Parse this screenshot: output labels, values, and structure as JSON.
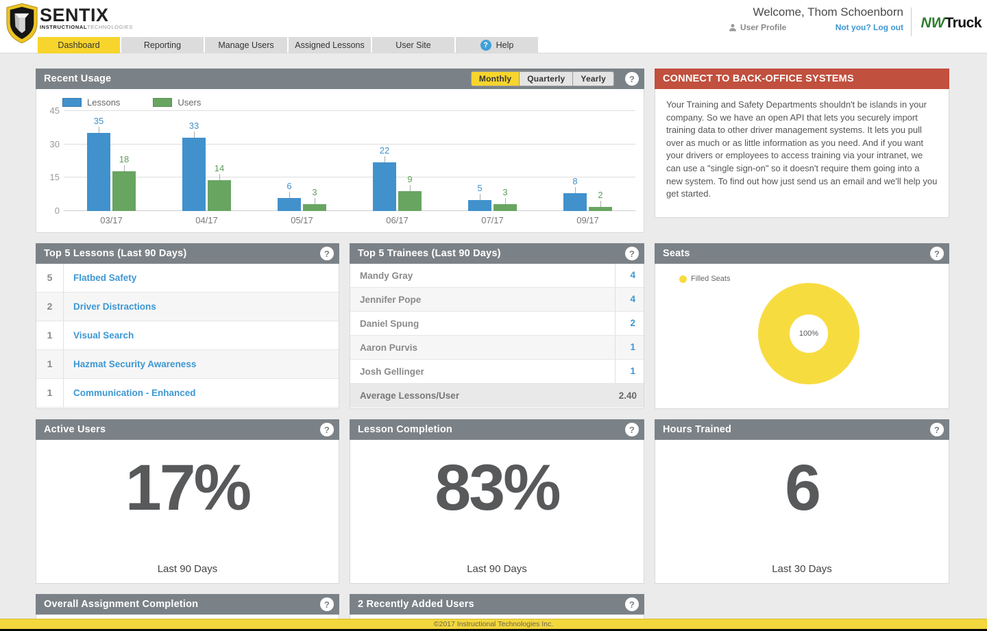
{
  "header": {
    "brand": {
      "name": "SENTIX",
      "sub1": "INSTRUCTIONAL",
      "sub2": "TECHNOLOGIES"
    },
    "welcome": "Welcome, Thom Schoenborn",
    "user_profile": "User Profile",
    "logout": "Not you? Log out",
    "client": {
      "part1": "NW",
      "part2": "Truck"
    }
  },
  "nav": {
    "tabs": [
      {
        "label": "Dashboard",
        "active": true
      },
      {
        "label": "Reporting",
        "active": false
      },
      {
        "label": "Manage Users",
        "active": false
      },
      {
        "label": "Assigned Lessons",
        "active": false
      },
      {
        "label": "User Site",
        "active": false
      },
      {
        "label": "Help",
        "active": false,
        "help_icon": true
      }
    ]
  },
  "icons": {
    "help": "?"
  },
  "recent_usage": {
    "title": "Recent Usage",
    "periods": [
      {
        "label": "Monthly",
        "active": true
      },
      {
        "label": "Quarterly",
        "active": false
      },
      {
        "label": "Yearly",
        "active": false
      }
    ]
  },
  "chart_data": {
    "type": "bar",
    "title": "Recent Usage",
    "categories": [
      "03/17",
      "04/17",
      "05/17",
      "06/17",
      "07/17",
      "09/17"
    ],
    "series": [
      {
        "name": "Lessons",
        "color": "#4191cc",
        "label_color": "#4191cc",
        "values": [
          35,
          33,
          6,
          22,
          5,
          8
        ]
      },
      {
        "name": "Users",
        "color": "#68a561",
        "label_color": "#5d9e56",
        "values": [
          18,
          14,
          3,
          9,
          3,
          2
        ]
      }
    ],
    "ylim": [
      0,
      45
    ],
    "yticks": [
      0,
      15,
      30,
      45
    ],
    "grid": true,
    "legend_position": "top-left"
  },
  "connect": {
    "title": "CONNECT TO BACK-OFFICE SYSTEMS",
    "body": "Your Training and Safety Departments shouldn't be islands in your company. So we have an open API that lets you securely import training data to other driver management systems. It lets you pull over as much or as little information as you need. And if you want your drivers or employees to access training via your intranet, we can use a \"single sign-on\" so it doesn't require them going into a new system. To find out how just send us an email and we'll help you get started."
  },
  "top_lessons": {
    "title": "Top 5 Lessons (Last 90 Days)",
    "rows": [
      {
        "count": "5",
        "name": "Flatbed Safety"
      },
      {
        "count": "2",
        "name": "Driver Distractions"
      },
      {
        "count": "1",
        "name": "Visual Search"
      },
      {
        "count": "1",
        "name": "Hazmat Security Awareness"
      },
      {
        "count": "1",
        "name": "Communication - Enhanced"
      }
    ]
  },
  "top_trainees": {
    "title": "Top 5 Trainees (Last 90 Days)",
    "rows": [
      {
        "name": "Mandy Gray",
        "count": "4"
      },
      {
        "name": "Jennifer Pope",
        "count": "4"
      },
      {
        "name": "Daniel Spung",
        "count": "2"
      },
      {
        "name": "Aaron Purvis",
        "count": "1"
      },
      {
        "name": "Josh Gellinger",
        "count": "1"
      }
    ],
    "footer": {
      "label": "Average Lessons/User",
      "value": "2.40"
    }
  },
  "seats": {
    "title": "Seats",
    "legend_label": "Filled Seats",
    "center_label": "100%",
    "filled_pct": 100,
    "color": "#f7dc40"
  },
  "stats": [
    {
      "title": "Active Users",
      "value": "17%",
      "caption": "Last 90 Days"
    },
    {
      "title": "Lesson Completion",
      "value": "83%",
      "caption": "Last 90 Days"
    },
    {
      "title": "Hours Trained",
      "value": "6",
      "caption": "Last 30 Days"
    }
  ],
  "bottom_panels": [
    {
      "title": "Overall Assignment Completion"
    },
    {
      "title": "2 Recently Added Users"
    }
  ],
  "footer": {
    "copyright": "©2017 Instructional Technologies Inc."
  },
  "colors": {
    "accent_yellow": "#f7d52d",
    "panel_header_gray": "#7b8287",
    "alert_red": "#c1503e",
    "link_blue": "#3d97d3",
    "bar_blue": "#4191cc",
    "bar_green": "#68a561",
    "donut_yellow": "#f7dc40"
  }
}
